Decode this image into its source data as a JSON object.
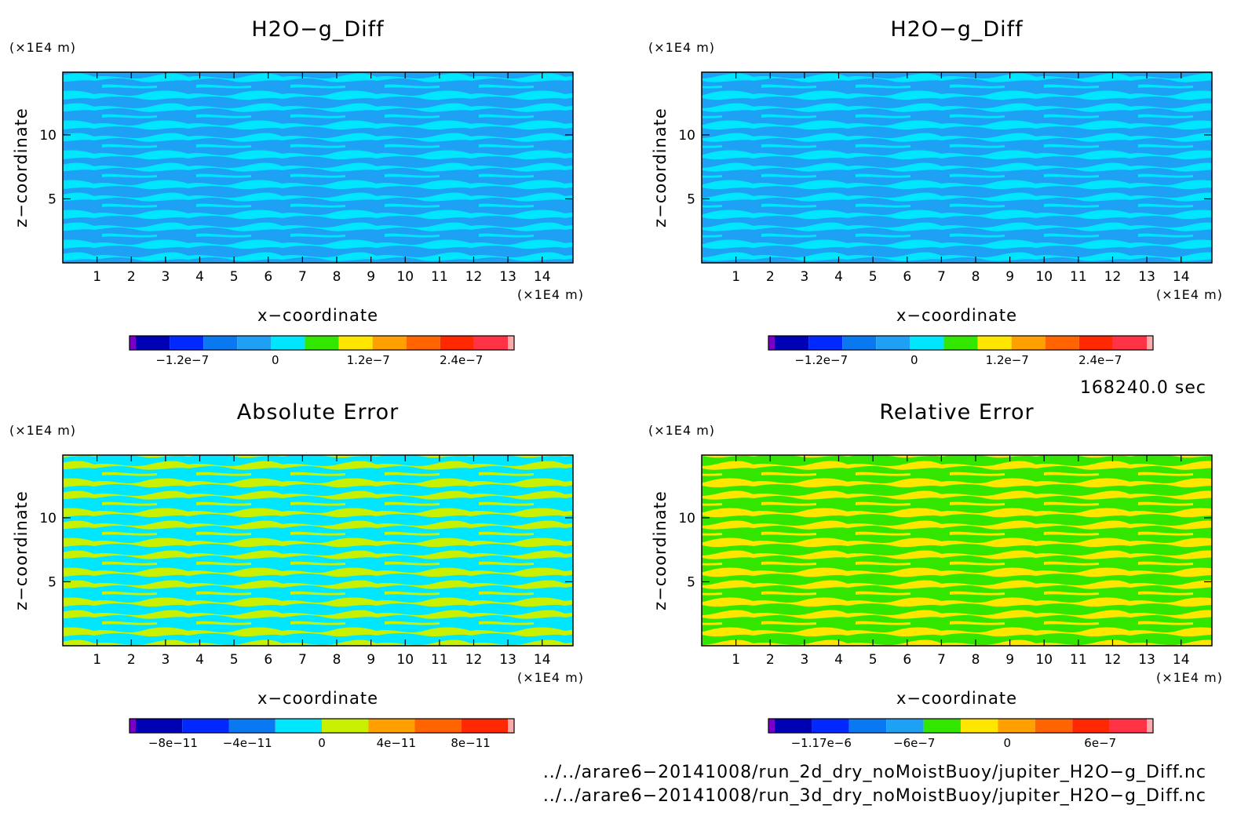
{
  "palette": {
    "purple": "#7a00c8",
    "navy": "#0000b4",
    "blue": "#0028ff",
    "azure": "#0a78f0",
    "lightblue": "#1ea0f5",
    "cyan": "#00e6ff",
    "green": "#32e600",
    "yellowgreen": "#c8f000",
    "yellow": "#ffe600",
    "orange": "#ffa000",
    "darkorange": "#ff6400",
    "red": "#ff2800",
    "crimson": "#ff3246",
    "pink": "#ffaaaa"
  },
  "chart_data": [
    {
      "type": "heatmap",
      "title": "H2O−g_Diff",
      "xlabel": "x−coordinate",
      "ylabel": "z−coordinate",
      "xunit": "(×1E4 m)",
      "yunit": "(×1E4 m)",
      "xlim": [
        0,
        14.9
      ],
      "ylim": [
        0,
        14.9
      ],
      "xticks": [
        "1",
        "2",
        "3",
        "4",
        "5",
        "6",
        "7",
        "8",
        "9",
        "10",
        "11",
        "12",
        "13",
        "14"
      ],
      "yticks": [
        "5",
        "10"
      ],
      "dominant_colors": [
        "#1ea0f5",
        "#00e6ff"
      ],
      "colorbar": {
        "colors": [
          "#7a00c8",
          "#0000b4",
          "#0028ff",
          "#0a78f0",
          "#1ea0f5",
          "#00e6ff",
          "#32e600",
          "#ffe600",
          "#ffa000",
          "#ff6400",
          "#ff2800",
          "#ff3246",
          "#ffaaaa"
        ],
        "labels": [
          "−1.2e−7",
          "0",
          "1.2e−7",
          "2.4e−7"
        ]
      }
    },
    {
      "type": "heatmap",
      "title": "H2O−g_Diff",
      "xlabel": "x−coordinate",
      "ylabel": "z−coordinate",
      "xunit": "(×1E4 m)",
      "yunit": "(×1E4 m)",
      "xlim": [
        0,
        14.9
      ],
      "ylim": [
        0,
        14.9
      ],
      "xticks": [
        "1",
        "2",
        "3",
        "4",
        "5",
        "6",
        "7",
        "8",
        "9",
        "10",
        "11",
        "12",
        "13",
        "14"
      ],
      "yticks": [
        "5",
        "10"
      ],
      "dominant_colors": [
        "#1ea0f5",
        "#00e6ff"
      ],
      "colorbar": {
        "colors": [
          "#7a00c8",
          "#0000b4",
          "#0028ff",
          "#0a78f0",
          "#1ea0f5",
          "#00e6ff",
          "#32e600",
          "#ffe600",
          "#ffa000",
          "#ff6400",
          "#ff2800",
          "#ff3246",
          "#ffaaaa"
        ],
        "labels": [
          "−1.2e−7",
          "0",
          "1.2e−7",
          "2.4e−7"
        ]
      }
    },
    {
      "type": "heatmap",
      "title": "Absolute Error",
      "xlabel": "x−coordinate",
      "ylabel": "z−coordinate",
      "xunit": "(×1E4 m)",
      "yunit": "(×1E4 m)",
      "xlim": [
        0,
        14.9
      ],
      "ylim": [
        0,
        14.9
      ],
      "xticks": [
        "1",
        "2",
        "3",
        "4",
        "5",
        "6",
        "7",
        "8",
        "9",
        "10",
        "11",
        "12",
        "13",
        "14"
      ],
      "yticks": [
        "5",
        "10"
      ],
      "dominant_colors": [
        "#00e6ff",
        "#c8f000"
      ],
      "colorbar": {
        "colors": [
          "#7a00c8",
          "#0000b4",
          "#0028ff",
          "#0a78f0",
          "#00e6ff",
          "#c8f000",
          "#ffa000",
          "#ff6400",
          "#ff2800",
          "#ffaaaa"
        ],
        "labels": [
          "−8e−11",
          "−4e−11",
          "0",
          "4e−11",
          "8e−11"
        ]
      }
    },
    {
      "type": "heatmap",
      "title": "Relative Error",
      "xlabel": "x−coordinate",
      "ylabel": "z−coordinate",
      "xunit": "(×1E4 m)",
      "yunit": "(×1E4 m)",
      "xlim": [
        0,
        14.9
      ],
      "ylim": [
        0,
        14.9
      ],
      "xticks": [
        "1",
        "2",
        "3",
        "4",
        "5",
        "6",
        "7",
        "8",
        "9",
        "10",
        "11",
        "12",
        "13",
        "14"
      ],
      "yticks": [
        "5",
        "10"
      ],
      "dominant_colors": [
        "#32e600",
        "#ffe600"
      ],
      "colorbar": {
        "colors": [
          "#7a00c8",
          "#0000b4",
          "#0028ff",
          "#0a78f0",
          "#1ea0f5",
          "#32e600",
          "#ffe600",
          "#ffa000",
          "#ff6400",
          "#ff2800",
          "#ff3246",
          "#ffaaaa"
        ],
        "labels": [
          "−1.17e−6",
          "−6e−7",
          "0",
          "6e−7"
        ]
      }
    }
  ],
  "info": {
    "time": "168240.0 sec",
    "file1": "../../arare6−20141008/run_2d_dry_noMoistBuoy/jupiter_H2O−g_Diff.nc",
    "file2": "../../arare6−20141008/run_3d_dry_noMoistBuoy/jupiter_H2O−g_Diff.nc"
  }
}
